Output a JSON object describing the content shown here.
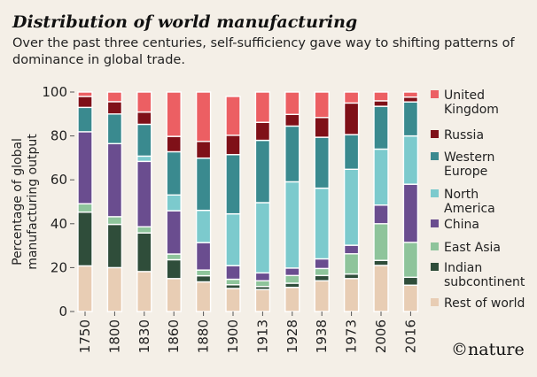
{
  "title": "Distribution of world manufacturing",
  "subtitle": "Over the past three centuries, self-sufficiency gave way to shifting patterns of dominance in global trade.",
  "brand": "©nature",
  "chart_data": {
    "type": "bar",
    "stacked": true,
    "ylabel": "Percentage of global manufacturing output",
    "ylim": [
      0,
      100
    ],
    "yticks": [
      "0",
      "20",
      "40",
      "60",
      "80",
      "100"
    ],
    "grid": false,
    "legend_position": "right",
    "categories": [
      "1750",
      "1800",
      "1830",
      "1860",
      "1880",
      "1900",
      "1913",
      "1928",
      "1938",
      "1973",
      "2006",
      "2016"
    ],
    "series": [
      {
        "name": "Rest of world",
        "color": "#e8cdb4",
        "values": [
          20.8,
          20.0,
          18.2,
          15.0,
          13.5,
          10.5,
          10.0,
          11.0,
          14.0,
          15.0,
          21.0,
          12.0
        ]
      },
      {
        "name": "Indian subcontinent",
        "color": "#2f4d3a",
        "values": [
          24.5,
          19.7,
          17.6,
          8.6,
          2.8,
          1.7,
          1.4,
          1.9,
          2.4,
          2.1,
          2.3,
          3.6
        ]
      },
      {
        "name": "East Asia",
        "color": "#8ec49b",
        "values": [
          3.8,
          3.5,
          2.8,
          2.6,
          2.6,
          2.5,
          2.6,
          3.5,
          3.2,
          9.2,
          16.7,
          15.9
        ]
      },
      {
        "name": "China",
        "color": "#6a4d8f",
        "values": [
          32.8,
          33.3,
          29.8,
          19.7,
          12.5,
          6.2,
          3.6,
          3.4,
          4.4,
          3.9,
          8.5,
          26.5
        ]
      },
      {
        "name": "North America",
        "color": "#7ccacd",
        "values": [
          0.0,
          0.0,
          2.4,
          7.2,
          14.7,
          23.6,
          32.0,
          39.3,
          32.2,
          34.6,
          25.5,
          22.0
        ]
      },
      {
        "name": "Western Europe",
        "color": "#3a8a8f",
        "values": [
          11.1,
          13.5,
          14.5,
          19.7,
          23.8,
          27.0,
          28.4,
          25.4,
          23.2,
          15.8,
          19.5,
          15.5
        ]
      },
      {
        "name": "Russia",
        "color": "#7f1018",
        "values": [
          5.0,
          5.6,
          5.6,
          7.0,
          7.6,
          8.8,
          8.2,
          5.3,
          9.0,
          14.4,
          2.5,
          2.2
        ]
      },
      {
        "name": "United Kingdom",
        "color": "#ec5f63",
        "values": [
          2.0,
          4.4,
          9.1,
          20.2,
          22.5,
          17.7,
          13.8,
          10.2,
          11.6,
          5.0,
          4.0,
          2.3
        ]
      }
    ],
    "legend_labels": [
      [
        "United",
        "Kingdom"
      ],
      [
        "Russia"
      ],
      [
        "Western",
        "Europe"
      ],
      [
        "North",
        "America"
      ],
      [
        "China"
      ],
      [
        "East Asia"
      ],
      [
        "Indian",
        "subcontinent"
      ],
      [
        "Rest of world"
      ]
    ]
  }
}
